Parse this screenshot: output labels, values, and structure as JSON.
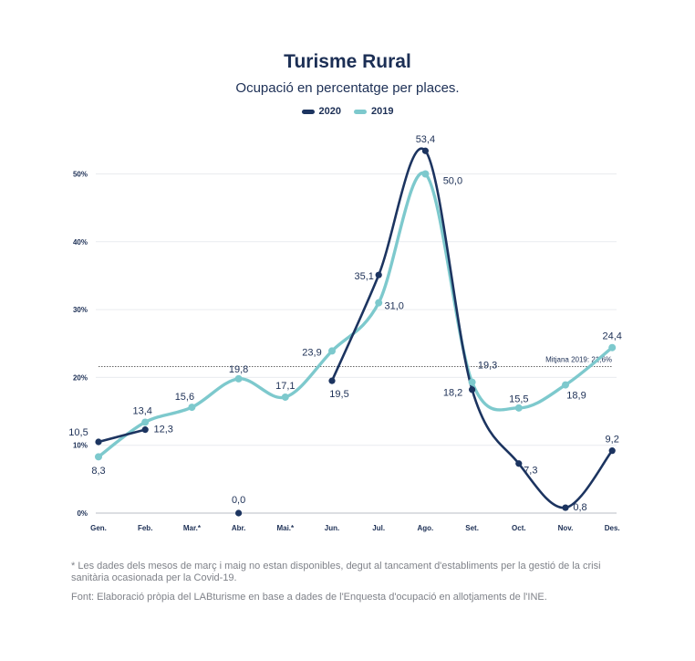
{
  "chart_data": {
    "type": "line",
    "title": "Turisme Rural",
    "subtitle": "Ocupació en percentatge per places.",
    "categories": [
      "Gen.",
      "Feb.",
      "Mar.*",
      "Abr.",
      "Mai.*",
      "Jun.",
      "Jul.",
      "Ago.",
      "Set.",
      "Oct.",
      "Nov.",
      "Des."
    ],
    "y_ticks": [
      "0%",
      "10%",
      "20%",
      "30%",
      "40%",
      "50%"
    ],
    "ylim": [
      0,
      55
    ],
    "grid": true,
    "legend_position": "top-center",
    "series": [
      {
        "name": "2020",
        "color": "#1c3460",
        "points": [
          {
            "x": 0,
            "y": 10.5,
            "label": "10,5"
          },
          {
            "x": 1,
            "y": 12.3,
            "label": "12,3"
          },
          {
            "x": 3,
            "y": 0.0,
            "label": "0,0"
          },
          {
            "x": 5,
            "y": 19.5,
            "label": "19,5"
          },
          {
            "x": 6,
            "y": 35.1,
            "label": "35,1"
          },
          {
            "x": 7,
            "y": 53.4,
            "label": "53,4"
          },
          {
            "x": 8,
            "y": 18.2,
            "label": "18,2"
          },
          {
            "x": 9,
            "y": 7.3,
            "label": "7,3"
          },
          {
            "x": 10,
            "y": 0.8,
            "label": "0,8"
          },
          {
            "x": 11,
            "y": 9.2,
            "label": "9,2"
          }
        ]
      },
      {
        "name": "2019",
        "color": "#7dc9cd",
        "points": [
          {
            "x": 0,
            "y": 8.3,
            "label": "8,3"
          },
          {
            "x": 1,
            "y": 13.4,
            "label": "13,4"
          },
          {
            "x": 2,
            "y": 15.6,
            "label": "15,6"
          },
          {
            "x": 3,
            "y": 19.8,
            "label": "19,8"
          },
          {
            "x": 4,
            "y": 17.1,
            "label": "17,1"
          },
          {
            "x": 5,
            "y": 23.9,
            "label": "23,9"
          },
          {
            "x": 6,
            "y": 31.0,
            "label": "31,0"
          },
          {
            "x": 7,
            "y": 50.0,
            "label": "50,0"
          },
          {
            "x": 8,
            "y": 19.3,
            "label": "19,3"
          },
          {
            "x": 9,
            "y": 15.5,
            "label": "15,5"
          },
          {
            "x": 10,
            "y": 18.9,
            "label": "18,9"
          },
          {
            "x": 11,
            "y": 24.4,
            "label": "24,4"
          }
        ]
      }
    ],
    "reference_line": {
      "y": 21.6,
      "label": "Mitjana 2019: 21,6%"
    }
  },
  "footnotes": {
    "note": "* Les dades dels mesos de març i maig no estan disponibles, degut al tancament d'establiments per la gestió de la crisi sanitària ocasionada per la Covid-19.",
    "source": "Font: Elaboració pròpia del LABturisme en base a dades de l'Enquesta d'ocupació en allotjaments de l'INE."
  }
}
